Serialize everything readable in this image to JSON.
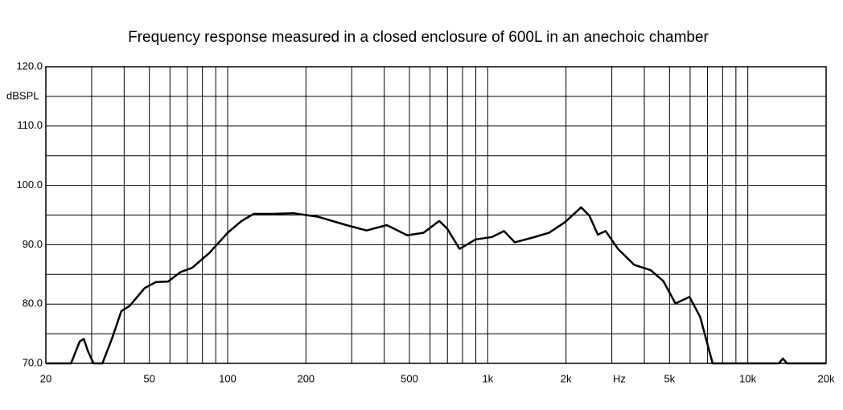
{
  "chart_data": {
    "type": "line",
    "title": "Frequency response measured  in a closed enclosure of 600L in an anechoic chamber",
    "y_unit_label": "dBSPL",
    "x_unit_label": "Hz",
    "log_x": true,
    "grid": true,
    "x": [
      20,
      25,
      27,
      28,
      29,
      30.5,
      33,
      36,
      39,
      42,
      48,
      53,
      59,
      66,
      73,
      85,
      100,
      113,
      126,
      150,
      180,
      223,
      286,
      342,
      409,
      490,
      566,
      651,
      699,
      779,
      899,
      1040,
      1155,
      1270,
      1490,
      1720,
      1980,
      2285,
      2460,
      2650,
      2840,
      3170,
      3660,
      4230,
      4730,
      5270,
      5970,
      6560,
      7320,
      13150,
      13640,
      14150,
      20000
    ],
    "series": [
      {
        "name": "SPL",
        "color": "#000000",
        "values": [
          70,
          70,
          73.7,
          74.1,
          72.1,
          70,
          70,
          74.3,
          78.8,
          79.7,
          82.7,
          83.7,
          83.8,
          85.4,
          86.1,
          88.6,
          92,
          94,
          95.2,
          95.2,
          95.3,
          94.7,
          93.3,
          92.4,
          93.3,
          91.6,
          92,
          94,
          92.7,
          89.3,
          90.9,
          91.3,
          92.3,
          90.4,
          91.2,
          92,
          93.8,
          96.3,
          94.9,
          91.7,
          92.3,
          89.3,
          86.6,
          85.7,
          83.9,
          80.1,
          81.2,
          77.8,
          70,
          70,
          70.8,
          70,
          70
        ]
      }
    ],
    "xlim": [
      20,
      20000
    ],
    "ylim": [
      70,
      120
    ],
    "xticks": [
      20,
      50,
      100,
      200,
      500,
      {
        "value": 1000,
        "label": "1k"
      },
      {
        "value": 2000,
        "label": "2k"
      },
      {
        "value": 5000,
        "label": "5k"
      },
      {
        "value": 10000,
        "label": "10k"
      },
      {
        "value": 20000,
        "label": "20k"
      }
    ],
    "xminor": [
      30,
      40,
      60,
      70,
      80,
      90,
      300,
      400,
      600,
      700,
      800,
      900,
      3000,
      4000,
      6000,
      7000,
      8000,
      9000
    ],
    "yticks": [
      {
        "value": 70,
        "label": "70.0"
      },
      {
        "value": 80,
        "label": "80.0"
      },
      {
        "value": 90,
        "label": "90.0"
      },
      {
        "value": 100,
        "label": "100.0"
      },
      {
        "value": 110,
        "label": "110.0"
      },
      {
        "value": 120,
        "label": "120.0"
      }
    ],
    "yminor": [
      75,
      85,
      95,
      105,
      115
    ]
  }
}
